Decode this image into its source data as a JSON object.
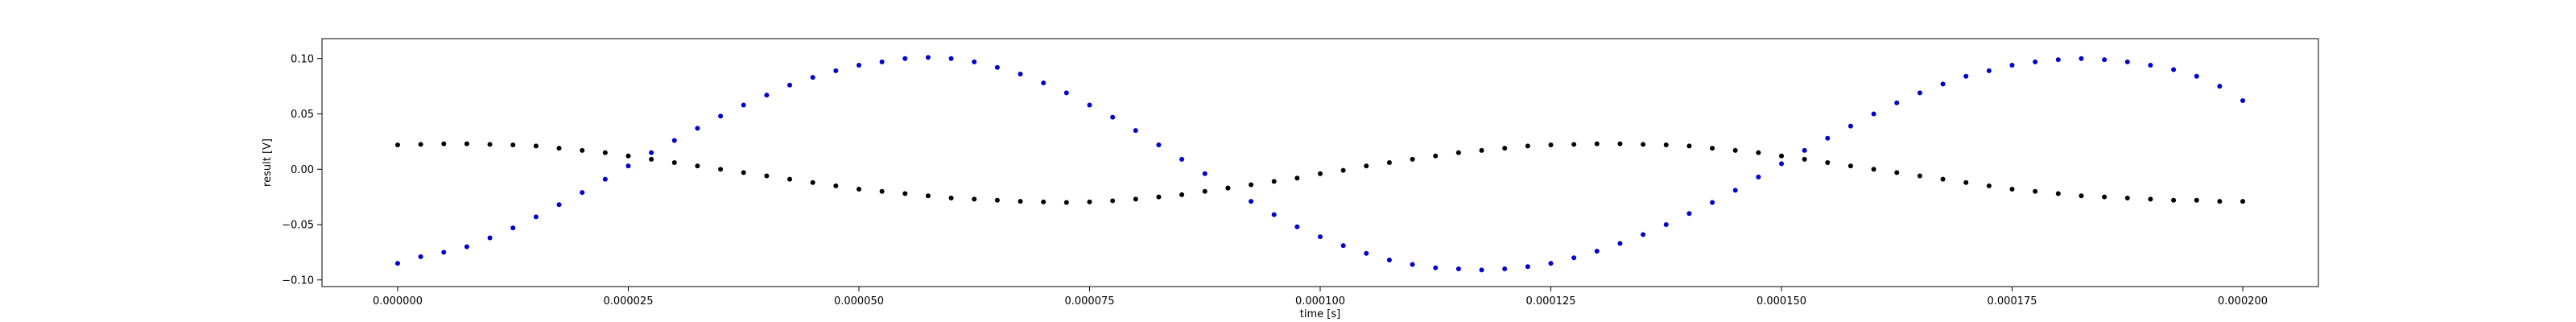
{
  "chart_data": {
    "type": "scatter",
    "xlabel": "time [s]",
    "ylabel": "result [V]",
    "xlim": [
      -8.2e-06,
      0.0002082
    ],
    "ylim": [
      -0.106,
      0.118
    ],
    "grid": false,
    "x_ticks": [
      0.0,
      2.5e-05,
      5e-05,
      7.5e-05,
      0.0001,
      0.000125,
      0.00015,
      0.000175,
      0.0002
    ],
    "x_tick_labels": [
      "0.000000",
      "0.000025",
      "0.000050",
      "0.000075",
      "0.000100",
      "0.000125",
      "0.000150",
      "0.000175",
      "0.000200"
    ],
    "y_ticks": [
      -0.1,
      -0.05,
      0.0,
      0.05,
      0.1
    ],
    "y_tick_labels": [
      "−0.10",
      "−0.05",
      "0.00",
      "0.05",
      "0.10"
    ],
    "series": [
      {
        "color": "#0000cc",
        "x": [
          0.0,
          2.5e-06,
          5e-06,
          7.5e-06,
          1e-05,
          1.25e-05,
          1.5e-05,
          1.75e-05,
          2e-05,
          2.25e-05,
          2.5e-05,
          2.75e-05,
          3e-05,
          3.25e-05,
          3.5e-05,
          3.75e-05,
          4e-05,
          4.25e-05,
          4.5e-05,
          4.75e-05,
          5e-05,
          5.25e-05,
          5.5e-05,
          5.75e-05,
          6e-05,
          6.25e-05,
          6.5e-05,
          6.75e-05,
          7e-05,
          7.25e-05,
          7.5e-05,
          7.75e-05,
          8e-05,
          8.25e-05,
          8.5e-05,
          8.75e-05,
          9e-05,
          9.25e-05,
          9.5e-05,
          9.75e-05,
          0.0001,
          0.0001025,
          0.000105,
          0.0001075,
          0.00011,
          0.0001125,
          0.000115,
          0.0001175,
          0.00012,
          0.0001225,
          0.000125,
          0.0001275,
          0.00013,
          0.0001325,
          0.000135,
          0.0001375,
          0.00014,
          0.0001425,
          0.000145,
          0.0001475,
          0.00015,
          0.0001525,
          0.000155,
          0.0001575,
          0.00016,
          0.0001625,
          0.000165,
          0.0001675,
          0.00017,
          0.0001725,
          0.000175,
          0.0001775,
          0.00018,
          0.0001825,
          0.000185,
          0.0001875,
          0.00019,
          0.0001925,
          0.000195,
          0.0001975,
          0.0002
        ],
        "y": [
          -0.085,
          -0.079,
          -0.075,
          -0.07,
          -0.062,
          -0.053,
          -0.043,
          -0.032,
          -0.021,
          -0.009,
          0.003,
          0.015,
          0.026,
          0.037,
          0.048,
          0.058,
          0.067,
          0.076,
          0.083,
          0.089,
          0.094,
          0.097,
          0.1,
          0.101,
          0.1,
          0.097,
          0.092,
          0.086,
          0.078,
          0.069,
          0.058,
          0.047,
          0.035,
          0.022,
          0.009,
          -0.004,
          -0.017,
          -0.029,
          -0.041,
          -0.052,
          -0.061,
          -0.069,
          -0.076,
          -0.082,
          -0.086,
          -0.089,
          -0.09,
          -0.091,
          -0.09,
          -0.088,
          -0.085,
          -0.08,
          -0.074,
          -0.067,
          -0.059,
          -0.05,
          -0.04,
          -0.03,
          -0.019,
          -0.007,
          0.005,
          0.017,
          0.028,
          0.039,
          0.05,
          0.06,
          0.069,
          0.077,
          0.084,
          0.089,
          0.094,
          0.097,
          0.099,
          0.1,
          0.099,
          0.097,
          0.094,
          0.09,
          0.084,
          0.075,
          0.062
        ]
      },
      {
        "color": "#000000",
        "x": [
          0.0,
          2.5e-06,
          5e-06,
          7.5e-06,
          1e-05,
          1.25e-05,
          1.5e-05,
          1.75e-05,
          2e-05,
          2.25e-05,
          2.5e-05,
          2.75e-05,
          3e-05,
          3.25e-05,
          3.5e-05,
          3.75e-05,
          4e-05,
          4.25e-05,
          4.5e-05,
          4.75e-05,
          5e-05,
          5.25e-05,
          5.5e-05,
          5.75e-05,
          6e-05,
          6.25e-05,
          6.5e-05,
          6.75e-05,
          7e-05,
          7.25e-05,
          7.5e-05,
          7.75e-05,
          8e-05,
          8.25e-05,
          8.5e-05,
          8.75e-05,
          9e-05,
          9.25e-05,
          9.5e-05,
          9.75e-05,
          0.0001,
          0.0001025,
          0.000105,
          0.0001075,
          0.00011,
          0.0001125,
          0.000115,
          0.0001175,
          0.00012,
          0.0001225,
          0.000125,
          0.0001275,
          0.00013,
          0.0001325,
          0.000135,
          0.0001375,
          0.00014,
          0.0001425,
          0.000145,
          0.0001475,
          0.00015,
          0.0001525,
          0.000155,
          0.0001575,
          0.00016,
          0.0001625,
          0.000165,
          0.0001675,
          0.00017,
          0.0001725,
          0.000175,
          0.0001775,
          0.00018,
          0.0001825,
          0.000185,
          0.0001875,
          0.00019,
          0.0001925,
          0.000195,
          0.0001975,
          0.0002
        ],
        "y": [
          0.022,
          0.0225,
          0.023,
          0.023,
          0.0225,
          0.022,
          0.021,
          0.019,
          0.017,
          0.015,
          0.012,
          0.009,
          0.006,
          0.003,
          0.0,
          -0.003,
          -0.006,
          -0.009,
          -0.012,
          -0.015,
          -0.018,
          -0.02,
          -0.022,
          -0.024,
          -0.026,
          -0.027,
          -0.028,
          -0.029,
          -0.0295,
          -0.03,
          -0.0295,
          -0.0285,
          -0.027,
          -0.025,
          -0.023,
          -0.02,
          -0.017,
          -0.014,
          -0.011,
          -0.008,
          -0.004,
          -0.001,
          0.003,
          0.006,
          0.009,
          0.012,
          0.015,
          0.017,
          0.019,
          0.021,
          0.022,
          0.0225,
          0.023,
          0.023,
          0.0225,
          0.022,
          0.021,
          0.019,
          0.017,
          0.015,
          0.012,
          0.009,
          0.006,
          0.003,
          0.0,
          -0.003,
          -0.006,
          -0.009,
          -0.012,
          -0.015,
          -0.018,
          -0.02,
          -0.022,
          -0.024,
          -0.025,
          -0.026,
          -0.027,
          -0.028,
          -0.028,
          -0.029,
          -0.029
        ]
      }
    ]
  }
}
